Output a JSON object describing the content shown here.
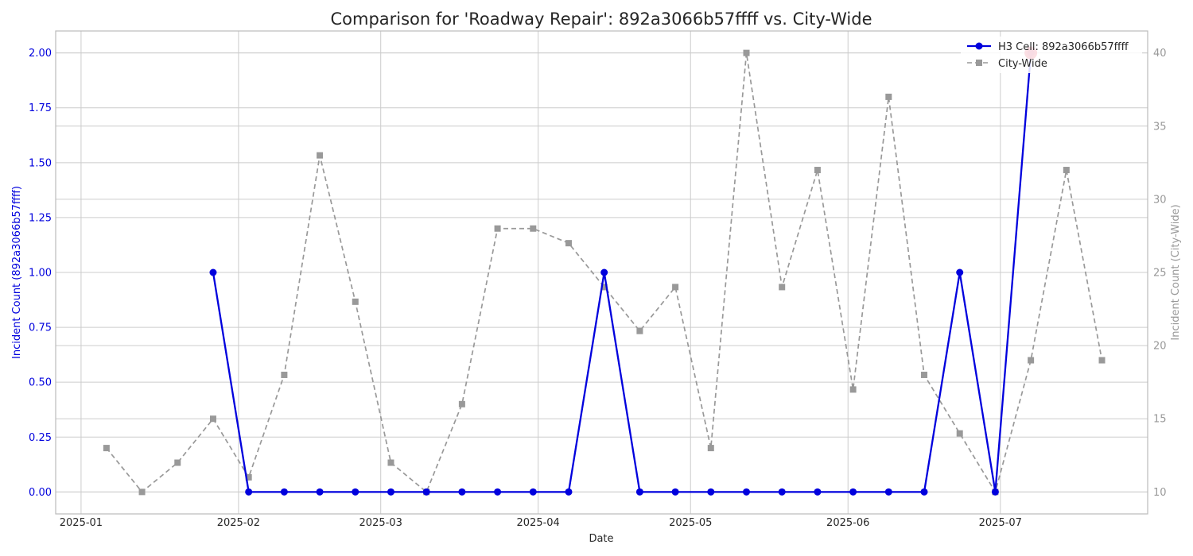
{
  "chart_data": {
    "type": "line",
    "title": "Comparison for 'Roadway Repair': 892a3066b57ffff vs. City-Wide",
    "xlabel": "Date",
    "ylabel_left": "Incident Count (892a3066b57ffff)",
    "ylabel_right": "Incident Count (City-Wide)",
    "x_ticks": [
      "2025-01",
      "2025-02",
      "2025-03",
      "2025-04",
      "2025-05",
      "2025-06",
      "2025-07"
    ],
    "y_left_ticks": [
      "0.00",
      "0.25",
      "0.50",
      "0.75",
      "1.00",
      "1.25",
      "1.50",
      "1.75",
      "2.00"
    ],
    "y_right_ticks": [
      "10",
      "15",
      "20",
      "25",
      "30",
      "35",
      "40"
    ],
    "ylim_left": [
      -0.1,
      2.1
    ],
    "ylim_right": [
      8.5,
      41.5
    ],
    "legend_position": "top-right",
    "colors": {
      "h3": "#0000dd",
      "city": "#999999",
      "highlight": "#dd1133"
    },
    "series": [
      {
        "name": "H3 Cell: 892a3066b57ffff",
        "axis": "left",
        "style": "solid-circle",
        "x": [
          "2025-01-27",
          "2025-02-03",
          "2025-02-10",
          "2025-02-17",
          "2025-02-24",
          "2025-03-03",
          "2025-03-10",
          "2025-03-17",
          "2025-03-24",
          "2025-03-31",
          "2025-04-07",
          "2025-04-14",
          "2025-04-21",
          "2025-04-28",
          "2025-05-05",
          "2025-05-12",
          "2025-05-19",
          "2025-05-26",
          "2025-06-02",
          "2025-06-09",
          "2025-06-16",
          "2025-06-23",
          "2025-06-30",
          "2025-07-07"
        ],
        "values": [
          1,
          0,
          0,
          0,
          0,
          0,
          0,
          0,
          0,
          0,
          0,
          1,
          0,
          0,
          0,
          0,
          0,
          0,
          0,
          0,
          0,
          1,
          0,
          2
        ]
      },
      {
        "name": "City-Wide",
        "axis": "right",
        "style": "dashed-square",
        "x": [
          "2025-01-06",
          "2025-01-13",
          "2025-01-20",
          "2025-01-27",
          "2025-02-03",
          "2025-02-10",
          "2025-02-17",
          "2025-02-24",
          "2025-03-03",
          "2025-03-10",
          "2025-03-17",
          "2025-03-24",
          "2025-03-31",
          "2025-04-07",
          "2025-04-14",
          "2025-04-21",
          "2025-04-28",
          "2025-05-05",
          "2025-05-12",
          "2025-05-19",
          "2025-05-26",
          "2025-06-02",
          "2025-06-09",
          "2025-06-16",
          "2025-06-23",
          "2025-06-30",
          "2025-07-07",
          "2025-07-14",
          "2025-07-21"
        ],
        "values": [
          13,
          10,
          12,
          15,
          11,
          18,
          33,
          23,
          12,
          10,
          16,
          28,
          28,
          27,
          24,
          21,
          24,
          13,
          40,
          24,
          32,
          17,
          37,
          18,
          14,
          10,
          19,
          32,
          19
        ]
      }
    ],
    "highlight_point": {
      "series": 0,
      "x": "2025-07-07",
      "value": 2
    }
  }
}
